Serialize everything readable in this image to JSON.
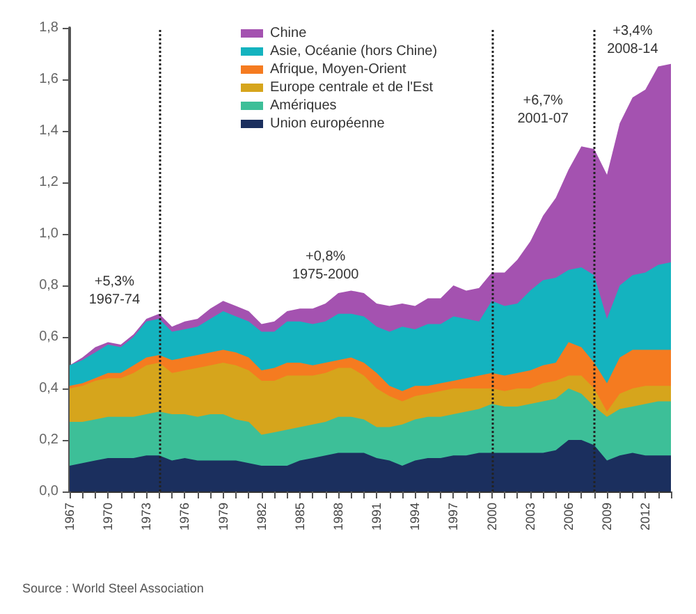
{
  "chart_data": {
    "type": "area",
    "stacked": true,
    "legend": "top",
    "grid": false,
    "marker": "none",
    "x": [
      1967,
      1968,
      1969,
      1970,
      1971,
      1972,
      1973,
      1974,
      1975,
      1976,
      1977,
      1978,
      1979,
      1980,
      1981,
      1982,
      1983,
      1984,
      1985,
      1986,
      1987,
      1988,
      1989,
      1990,
      1991,
      1992,
      1993,
      1994,
      1995,
      1996,
      1997,
      1998,
      1999,
      2000,
      2001,
      2002,
      2003,
      2004,
      2005,
      2006,
      2007,
      2008,
      2009,
      2010,
      2011,
      2012,
      2013,
      2014
    ],
    "xlim": [
      1967,
      2014
    ],
    "xticks": [
      1967,
      {
        "value": 1968,
        "label": null
      },
      {
        "value": 1969,
        "label": null
      },
      1970,
      {
        "value": 1971,
        "label": null
      },
      {
        "value": 1972,
        "label": null
      },
      1973,
      {
        "value": 1974,
        "label": null
      },
      {
        "value": 1975,
        "label": null
      },
      1976,
      {
        "value": 1977,
        "label": null
      },
      {
        "value": 1978,
        "label": null
      },
      1979,
      {
        "value": 1980,
        "label": null
      },
      {
        "value": 1981,
        "label": null
      },
      1982,
      {
        "value": 1983,
        "label": null
      },
      {
        "value": 1984,
        "label": null
      },
      1985,
      {
        "value": 1986,
        "label": null
      },
      {
        "value": 1987,
        "label": null
      },
      1988,
      {
        "value": 1989,
        "label": null
      },
      {
        "value": 1990,
        "label": null
      },
      1991,
      {
        "value": 1992,
        "label": null
      },
      {
        "value": 1993,
        "label": null
      },
      1994,
      {
        "value": 1995,
        "label": null
      },
      {
        "value": 1996,
        "label": null
      },
      1997,
      {
        "value": 1998,
        "label": null
      },
      {
        "value": 1999,
        "label": null
      },
      2000,
      {
        "value": 2001,
        "label": null
      },
      {
        "value": 2002,
        "label": null
      },
      2003,
      {
        "value": 2004,
        "label": null
      },
      {
        "value": 2005,
        "label": null
      },
      2006,
      {
        "value": 2007,
        "label": null
      },
      {
        "value": 2008,
        "label": null
      },
      2009,
      {
        "value": 2010,
        "label": null
      },
      {
        "value": 2011,
        "label": null
      },
      2012,
      {
        "value": 2013,
        "label": null
      },
      {
        "value": 2014,
        "label": null
      }
    ],
    "ylim": [
      0,
      1.8
    ],
    "yticks": [
      {
        "value": 0,
        "label": "0,0"
      },
      {
        "value": 0.2,
        "label": "0,2"
      },
      {
        "value": 0.4,
        "label": "0,4"
      },
      {
        "value": 0.6,
        "label": "0,6"
      },
      {
        "value": 0.8,
        "label": "0,8"
      },
      {
        "value": 1.0,
        "label": "1,0"
      },
      {
        "value": 1.2,
        "label": "1,2"
      },
      {
        "value": 1.4,
        "label": "1,4"
      },
      {
        "value": 1.6,
        "label": "1,6"
      },
      {
        "value": 1.8,
        "label": "1,8"
      }
    ],
    "series": [
      {
        "name": "Union européenne",
        "color": "#1b2f5e",
        "values": [
          0.1,
          0.11,
          0.12,
          0.13,
          0.13,
          0.13,
          0.14,
          0.14,
          0.12,
          0.13,
          0.12,
          0.12,
          0.12,
          0.12,
          0.11,
          0.1,
          0.1,
          0.1,
          0.12,
          0.13,
          0.14,
          0.15,
          0.15,
          0.15,
          0.13,
          0.12,
          0.1,
          0.12,
          0.13,
          0.13,
          0.14,
          0.14,
          0.15,
          0.15,
          0.15,
          0.15,
          0.15,
          0.15,
          0.16,
          0.2,
          0.2,
          0.18,
          0.12,
          0.14,
          0.15,
          0.14,
          0.14,
          0.14
        ]
      },
      {
        "name": "Amériques",
        "color": "#3dbf98",
        "values": [
          0.17,
          0.16,
          0.16,
          0.16,
          0.16,
          0.16,
          0.16,
          0.17,
          0.18,
          0.17,
          0.17,
          0.18,
          0.18,
          0.16,
          0.16,
          0.12,
          0.13,
          0.14,
          0.13,
          0.13,
          0.13,
          0.14,
          0.14,
          0.13,
          0.12,
          0.13,
          0.16,
          0.16,
          0.16,
          0.16,
          0.16,
          0.17,
          0.17,
          0.19,
          0.18,
          0.18,
          0.19,
          0.2,
          0.2,
          0.2,
          0.18,
          0.15,
          0.17,
          0.18,
          0.18,
          0.2,
          0.21,
          0.21
        ]
      },
      {
        "name": "Europe centrale et de l'Est",
        "color": "#d6a51c",
        "values": [
          0.13,
          0.14,
          0.15,
          0.15,
          0.15,
          0.17,
          0.19,
          0.19,
          0.16,
          0.17,
          0.19,
          0.19,
          0.2,
          0.21,
          0.2,
          0.21,
          0.2,
          0.21,
          0.2,
          0.19,
          0.19,
          0.19,
          0.19,
          0.17,
          0.15,
          0.12,
          0.09,
          0.09,
          0.09,
          0.1,
          0.1,
          0.09,
          0.08,
          0.06,
          0.06,
          0.07,
          0.06,
          0.07,
          0.07,
          0.05,
          0.07,
          0.07,
          0.02,
          0.06,
          0.07,
          0.07,
          0.06,
          0.06
        ]
      },
      {
        "name": "Afrique, Moyen-Orient",
        "color": "#f57b20",
        "values": [
          0.01,
          0.01,
          0.01,
          0.02,
          0.02,
          0.03,
          0.03,
          0.03,
          0.05,
          0.05,
          0.05,
          0.05,
          0.05,
          0.05,
          0.05,
          0.04,
          0.05,
          0.05,
          0.05,
          0.04,
          0.04,
          0.03,
          0.04,
          0.05,
          0.06,
          0.04,
          0.04,
          0.04,
          0.03,
          0.03,
          0.03,
          0.04,
          0.05,
          0.06,
          0.06,
          0.06,
          0.07,
          0.07,
          0.07,
          0.13,
          0.11,
          0.1,
          0.11,
          0.14,
          0.15,
          0.14,
          0.14,
          0.14
        ]
      },
      {
        "name": "Asie, Océanie (hors Chine)",
        "color": "#14b3bf",
        "values": [
          0.08,
          0.09,
          0.1,
          0.11,
          0.1,
          0.11,
          0.14,
          0.14,
          0.11,
          0.11,
          0.11,
          0.13,
          0.15,
          0.14,
          0.14,
          0.15,
          0.14,
          0.16,
          0.16,
          0.16,
          0.16,
          0.18,
          0.17,
          0.18,
          0.18,
          0.21,
          0.25,
          0.22,
          0.24,
          0.23,
          0.25,
          0.23,
          0.21,
          0.28,
          0.27,
          0.27,
          0.31,
          0.33,
          0.33,
          0.28,
          0.31,
          0.34,
          0.25,
          0.28,
          0.29,
          0.3,
          0.33,
          0.34
        ]
      },
      {
        "name": "Chine",
        "color": "#a452b0",
        "values": [
          0.0,
          0.01,
          0.02,
          0.01,
          0.01,
          0.01,
          0.01,
          0.02,
          0.02,
          0.03,
          0.03,
          0.04,
          0.04,
          0.04,
          0.04,
          0.03,
          0.04,
          0.04,
          0.05,
          0.06,
          0.07,
          0.08,
          0.09,
          0.09,
          0.09,
          0.1,
          0.09,
          0.09,
          0.1,
          0.1,
          0.12,
          0.11,
          0.13,
          0.11,
          0.13,
          0.17,
          0.19,
          0.25,
          0.31,
          0.39,
          0.47,
          0.49,
          0.56,
          0.63,
          0.69,
          0.71,
          0.77,
          0.77
        ]
      }
    ],
    "ref_lines": [
      {
        "axis": "x",
        "value": 1974,
        "color": "#222222",
        "line_style": "dotted"
      },
      {
        "axis": "x",
        "value": 2000,
        "color": "#222222",
        "line_style": "dotted"
      },
      {
        "axis": "x",
        "value": 2008,
        "color": "#222222",
        "line_style": "dotted"
      }
    ],
    "annotations": [
      "+5,3%\n1967-74",
      "+0,8%\n1975-2000",
      "+6,7%\n2001-07",
      "+3,4%\n2008-14",
      "Source : World Steel Association"
    ]
  }
}
